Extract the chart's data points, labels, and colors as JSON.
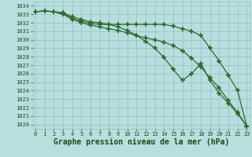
{
  "title": "Graphe pression niveau de la mer (hPa)",
  "hours": [
    0,
    1,
    2,
    3,
    4,
    5,
    6,
    7,
    8,
    9,
    10,
    11,
    12,
    13,
    14,
    15,
    16,
    17,
    18,
    19,
    20,
    21,
    22,
    23
  ],
  "line1": [
    1033.3,
    1033.4,
    1033.3,
    1033.2,
    1032.7,
    1032.4,
    1032.1,
    1032.0,
    1031.8,
    1031.5,
    1031.1,
    1030.5,
    1029.8,
    1029.0,
    1027.9,
    1026.5,
    1025.2,
    1026.0,
    1027.2,
    1025.2,
    1023.7,
    1022.5,
    1021.3,
    1019.8
  ],
  "line2": [
    1033.3,
    1033.4,
    1033.3,
    1033.1,
    1032.5,
    1032.2,
    1031.9,
    1031.8,
    1031.8,
    1031.8,
    1031.8,
    1031.8,
    1031.8,
    1031.8,
    1031.8,
    1031.6,
    1031.3,
    1031.0,
    1030.5,
    1029.0,
    1027.5,
    1025.8,
    1024.0,
    1019.8
  ],
  "line3": [
    1033.3,
    1033.4,
    1033.3,
    1033.0,
    1032.4,
    1032.0,
    1031.7,
    1031.5,
    1031.3,
    1031.1,
    1030.8,
    1030.5,
    1030.2,
    1030.0,
    1029.7,
    1029.3,
    1028.7,
    1027.8,
    1026.8,
    1025.5,
    1024.3,
    1022.8,
    1021.4,
    1019.8
  ],
  "line_color": "#2d6a2d",
  "bg_color": "#b8dede",
  "grid_color": "#90c0c0",
  "text_color": "#1a4a1a",
  "ylim_min": 1019.5,
  "ylim_max": 1034.5,
  "yticks": [
    1020,
    1021,
    1022,
    1023,
    1024,
    1025,
    1026,
    1027,
    1028,
    1029,
    1030,
    1031,
    1032,
    1033,
    1034
  ],
  "marker": "+",
  "markersize": 4,
  "markeredgewidth": 1.2,
  "linewidth": 0.9,
  "title_fontsize": 7,
  "tick_fontsize": 5
}
